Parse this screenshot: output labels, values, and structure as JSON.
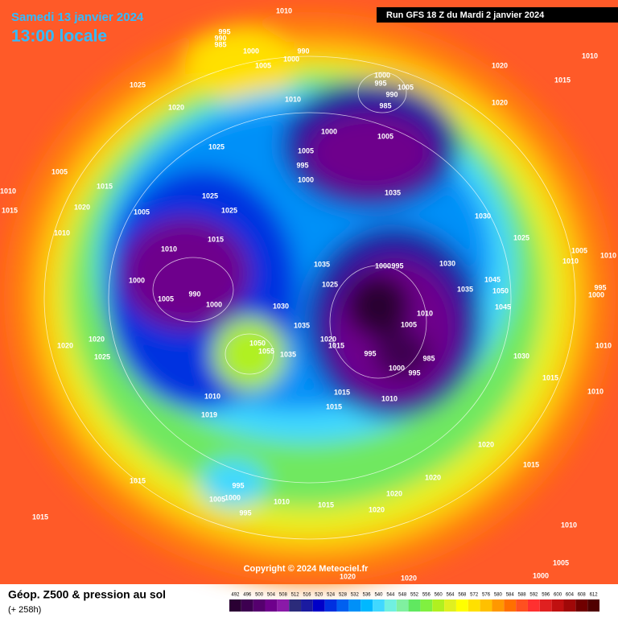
{
  "header": {
    "date": "Samedi 13 janvier 2024",
    "time": "13:00 locale",
    "run": "Run GFS 18 Z du Mardi 2 janvier 2024"
  },
  "copyright": "Copyright © 2024 Meteociel.fr",
  "footer": {
    "title": "Géop. Z500 & pression au sol",
    "lead": "(+ 258h)"
  },
  "legend": {
    "labels": [
      492,
      496,
      500,
      504,
      508,
      512,
      516,
      520,
      524,
      528,
      532,
      536,
      540,
      544,
      548,
      552,
      556,
      560,
      564,
      568,
      572,
      576,
      580,
      584,
      588,
      592,
      596,
      600,
      604,
      608,
      612
    ],
    "colors": [
      "#2a0033",
      "#3d0050",
      "#55006e",
      "#6e008c",
      "#8a1aa8",
      "#2b2b7a",
      "#1a1aa0",
      "#0000c8",
      "#0030e0",
      "#0060f0",
      "#0090f8",
      "#00b8ff",
      "#40d8ff",
      "#70f0e0",
      "#80f0a0",
      "#60e860",
      "#80f040",
      "#b0f020",
      "#e0f020",
      "#ffff00",
      "#ffe000",
      "#ffc000",
      "#ff9800",
      "#ff7000",
      "#ff5020",
      "#ff3030",
      "#e02020",
      "#c01010",
      "#a00808",
      "#700000",
      "#500000"
    ]
  },
  "isobars": [
    "1010",
    "995",
    "990",
    "985",
    "1000",
    "1005",
    "990",
    "1000",
    "1025",
    "1020",
    "1025",
    "1010",
    "1000",
    "995",
    "990",
    "985",
    "1005",
    "1000",
    "1005",
    "1005",
    "995",
    "1000",
    "1020",
    "1010",
    "1015",
    "1020",
    "1005",
    "1010",
    "1015",
    "1015",
    "1020",
    "1010",
    "1005",
    "1025",
    "1025",
    "1035",
    "1030",
    "1025",
    "1015",
    "1010",
    "1000",
    "990",
    "1005",
    "1000",
    "1035",
    "1000",
    "995",
    "1030",
    "1035",
    "1025",
    "1045",
    "1050",
    "1045",
    "1030",
    "1035",
    "1010",
    "1005",
    "1020",
    "1015",
    "1050",
    "1055",
    "1035",
    "1020",
    "1020",
    "1025",
    "995",
    "1000",
    "995",
    "985",
    "1030",
    "1010",
    "1015",
    "1010",
    "1015",
    "1010",
    "1015",
    "1010",
    "1019",
    "1020",
    "1020",
    "1015",
    "1015",
    "995",
    "1005",
    "1000",
    "995",
    "1010",
    "1015",
    "1020",
    "1020",
    "1015",
    "1010",
    "1005",
    "1000",
    "1020",
    "1020",
    "1005",
    "1010",
    "995",
    "1000",
    "1010"
  ]
}
